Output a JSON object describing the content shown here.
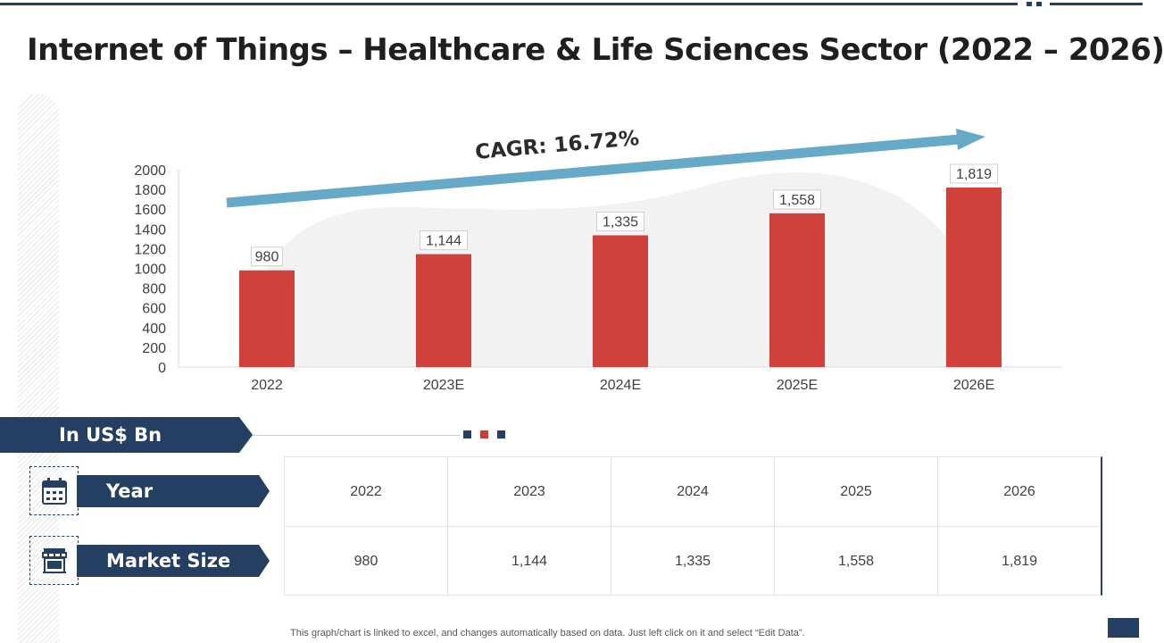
{
  "title": "Internet of Things – Healthcare & Life Sciences Sector (2022 – 2026)",
  "colors": {
    "navy": "#253f63",
    "bar": "#d0413b",
    "arrow": "#67aac8",
    "red_square": "#c0403c"
  },
  "chart_data": {
    "type": "bar",
    "categories": [
      "2022",
      "2023E",
      "2024E",
      "2025E",
      "2026E"
    ],
    "values": [
      980,
      1144,
      1335,
      1558,
      1819
    ],
    "data_labels": [
      "980",
      "1,144",
      "1,335",
      "1,558",
      "1,819"
    ],
    "ylim": [
      0,
      2000
    ],
    "yticks": [
      0,
      200,
      400,
      600,
      800,
      1000,
      1200,
      1400,
      1600,
      1800,
      2000
    ],
    "annotation": "CAGR: 16.72%",
    "xlabel": "",
    "ylabel": "",
    "grid": false,
    "legend": "none"
  },
  "units_label": "In US$ Bn",
  "table": {
    "year_label": "Year",
    "market_label": "Market Size",
    "years": [
      "2022",
      "2023",
      "2024",
      "2025",
      "2026"
    ],
    "market_sizes": [
      "980",
      "1,144",
      "1,335",
      "1,558",
      "1,819"
    ]
  },
  "footer_note": "This graph/chart is linked to excel,  and changes automatically based on data. Just left click on it and select “Edit Data”."
}
